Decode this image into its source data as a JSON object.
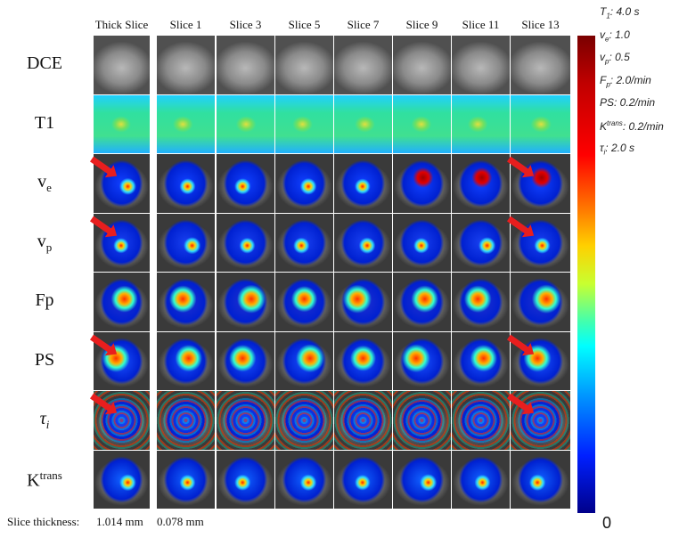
{
  "columns": [
    "Thick Slice",
    "Slice 1",
    "Slice 3",
    "Slice 5",
    "Slice 7",
    "Slice 9",
    "Slice 11",
    "Slice 13"
  ],
  "rows": [
    {
      "key": "dce",
      "label": "DCE",
      "main": "DCE",
      "sub": "",
      "sup": "",
      "italic": false
    },
    {
      "key": "t1",
      "label": "T1",
      "main": "T1",
      "sub": "",
      "sup": "",
      "italic": false
    },
    {
      "key": "ve",
      "label": "ve",
      "main": "v",
      "sub": "e",
      "sup": "",
      "italic": false
    },
    {
      "key": "vp",
      "label": "vp",
      "main": "v",
      "sub": "p",
      "sup": "",
      "italic": false
    },
    {
      "key": "fp",
      "label": "Fp",
      "main": "Fp",
      "sub": "",
      "sup": "",
      "italic": false
    },
    {
      "key": "ps",
      "label": "PS",
      "main": "PS",
      "sub": "",
      "sup": "",
      "italic": false
    },
    {
      "key": "taui",
      "label": "τi",
      "main": "τ",
      "sub": "i",
      "sup": "",
      "italic": true
    },
    {
      "key": "ktrans",
      "label": "Ktrans",
      "main": "K",
      "sub": "",
      "sup": "trans",
      "italic": false
    }
  ],
  "arrows": {
    "ve": [
      0,
      7
    ],
    "vp": [
      0,
      7
    ],
    "ps": [
      0,
      7
    ],
    "taui": [
      0,
      7
    ]
  },
  "arrow_color": "#e81e1e",
  "colorbar": {
    "colormap": "jet",
    "min_label": "0",
    "max_labels": [
      {
        "main": "T",
        "sub": "1",
        "sup": "",
        "value": ": 4.0 s"
      },
      {
        "main": "v",
        "sub": "e",
        "sup": "",
        "value": ": 1.0"
      },
      {
        "main": "v",
        "sub": "p",
        "sup": "",
        "value": ": 0.5"
      },
      {
        "main": "F",
        "sub": "p",
        "sup": "",
        "value": ": 2.0/min"
      },
      {
        "main": "PS",
        "sub": "",
        "sup": "",
        "value": ": 0.2/min"
      },
      {
        "main": "K",
        "sub": "",
        "sup": "trans",
        "value": ": 0.2/min"
      },
      {
        "main": "τ",
        "sub": "i",
        "sup": "",
        "value": ": 2.0 s"
      }
    ]
  },
  "slice_thickness": {
    "label": "Slice thickness:",
    "thick": "1.014 mm",
    "thin": "0.078 mm"
  }
}
